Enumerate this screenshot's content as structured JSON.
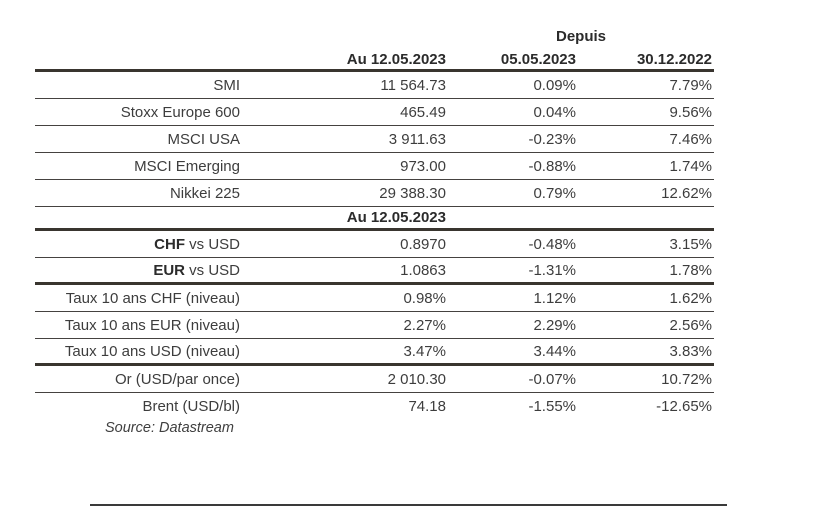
{
  "colors": {
    "background": "#ffffff",
    "text": "#3d3d3d",
    "bold_text": "#2b2b2b",
    "rule_thin": "#454240",
    "rule_thick": "#39352f"
  },
  "table": {
    "depuis_label": "Depuis",
    "columns": [
      "Au 12.05.2023",
      "05.05.2023",
      "30.12.2022"
    ],
    "subheader": "Au 12.05.2023",
    "groups": [
      {
        "name": "indices",
        "end_rule": "thin",
        "rows": [
          {
            "label": "SMI",
            "values": [
              "11 564.73",
              "0.09%",
              "7.79%"
            ]
          },
          {
            "label": "Stoxx Europe 600",
            "values": [
              "465.49",
              "0.04%",
              "9.56%"
            ]
          },
          {
            "label": "MSCI USA",
            "values": [
              "3 911.63",
              "-0.23%",
              "7.46%"
            ]
          },
          {
            "label": "MSCI Emerging",
            "values": [
              "973.00",
              "-0.88%",
              "1.74%"
            ]
          },
          {
            "label": "Nikkei 225",
            "values": [
              "29 388.30",
              "0.79%",
              "12.62%"
            ]
          }
        ]
      },
      {
        "name": "currencies",
        "end_rule": "thick",
        "rows": [
          {
            "label_bold": "CHF",
            "label": " vs USD",
            "values": [
              "0.8970",
              "-0.48%",
              "3.15%"
            ]
          },
          {
            "label_bold": "EUR",
            "label": " vs USD",
            "values": [
              "1.0863",
              "-1.31%",
              "1.78%"
            ]
          }
        ]
      },
      {
        "name": "rates",
        "end_rule": "thick",
        "rows": [
          {
            "label": "Taux 10 ans CHF (niveau)",
            "values": [
              "0.98%",
              "1.12%",
              "1.62%"
            ]
          },
          {
            "label": "Taux 10 ans EUR (niveau)",
            "values": [
              "2.27%",
              "2.29%",
              "2.56%"
            ]
          },
          {
            "label": "Taux 10 ans USD (niveau)",
            "values": [
              "3.47%",
              "3.44%",
              "3.83%"
            ]
          }
        ]
      },
      {
        "name": "commodities",
        "end_rule": "none",
        "rows": [
          {
            "label": "Or (USD/par once)",
            "values": [
              "2 010.30",
              "-0.07%",
              "10.72%"
            ]
          },
          {
            "label": "Brent (USD/bl)",
            "values": [
              "74.18",
              "-1.55%",
              "-12.65%"
            ]
          }
        ]
      }
    ]
  },
  "source_note": "Source: Datastream"
}
